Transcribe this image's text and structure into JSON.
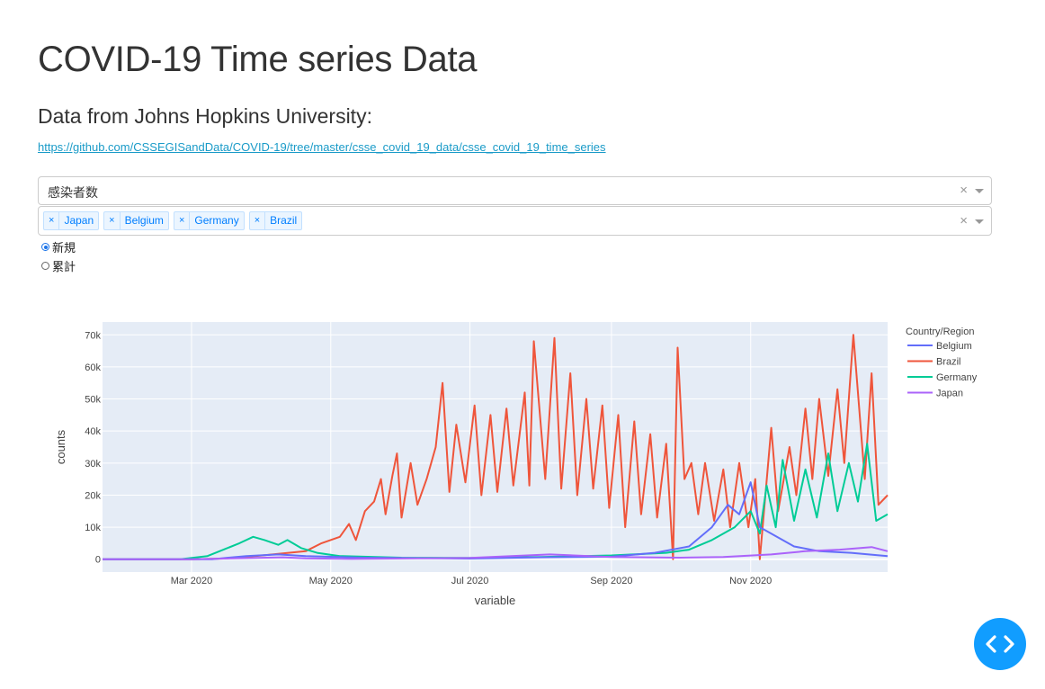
{
  "page": {
    "title": "COVID-19 Time series Data",
    "subtitle": "Data from Johns Hopkins University:",
    "source_link": "https://github.com/CSSEGISandData/COVID-19/tree/master/csse_covid_19_data/csse_covid_19_time_series"
  },
  "metric_dropdown": {
    "value": "感染者数",
    "clear": "×"
  },
  "country_dropdown": {
    "selected": [
      "Japan",
      "Belgium",
      "Germany",
      "Brazil"
    ],
    "clear": "×"
  },
  "mode_radio": {
    "options": [
      "新規",
      "累計"
    ],
    "selected": "新規"
  },
  "colors": {
    "Belgium": "#636efa",
    "Brazil": "#ef553b",
    "Germany": "#00cc96",
    "Japan": "#ab63fa",
    "plot_bg": "#e5ecf6",
    "fab": "#119dff"
  },
  "icons": {
    "fab": "code-icon"
  },
  "chart_data": {
    "type": "line",
    "xlabel": "variable",
    "ylabel": "counts",
    "x_ticks": [
      "Mar 2020",
      "May 2020",
      "Jul 2020",
      "Sep 2020",
      "Nov 2020"
    ],
    "y_ticks": [
      "0",
      "10k",
      "20k",
      "30k",
      "40k",
      "50k",
      "60k",
      "70k"
    ],
    "x_range": [
      "2020-01-22",
      "2020-12-31"
    ],
    "ylim": [
      -4000,
      74000
    ],
    "grid": true,
    "legend": {
      "title": "Country/Region",
      "position": "right"
    },
    "series": [
      {
        "name": "Brazil",
        "points": [
          [
            "2020-01-22",
            0
          ],
          [
            "2020-03-01",
            0
          ],
          [
            "2020-03-15",
            200
          ],
          [
            "2020-03-31",
            1100
          ],
          [
            "2020-04-10",
            1800
          ],
          [
            "2020-04-20",
            2500
          ],
          [
            "2020-04-27",
            5000
          ],
          [
            "2020-05-05",
            7000
          ],
          [
            "2020-05-09",
            11000
          ],
          [
            "2020-05-12",
            6000
          ],
          [
            "2020-05-16",
            15000
          ],
          [
            "2020-05-20",
            18000
          ],
          [
            "2020-05-23",
            25000
          ],
          [
            "2020-05-25",
            14000
          ],
          [
            "2020-05-28",
            26000
          ],
          [
            "2020-05-30",
            33000
          ],
          [
            "2020-06-01",
            13000
          ],
          [
            "2020-06-05",
            30000
          ],
          [
            "2020-06-08",
            17000
          ],
          [
            "2020-06-12",
            25000
          ],
          [
            "2020-06-16",
            35000
          ],
          [
            "2020-06-19",
            55000
          ],
          [
            "2020-06-22",
            21000
          ],
          [
            "2020-06-25",
            42000
          ],
          [
            "2020-06-29",
            24000
          ],
          [
            "2020-07-03",
            48000
          ],
          [
            "2020-07-06",
            20000
          ],
          [
            "2020-07-10",
            45000
          ],
          [
            "2020-07-13",
            21000
          ],
          [
            "2020-07-17",
            47000
          ],
          [
            "2020-07-20",
            23000
          ],
          [
            "2020-07-25",
            52000
          ],
          [
            "2020-07-27",
            23000
          ],
          [
            "2020-07-29",
            68000
          ],
          [
            "2020-08-03",
            25000
          ],
          [
            "2020-08-07",
            69000
          ],
          [
            "2020-08-10",
            22000
          ],
          [
            "2020-08-14",
            58000
          ],
          [
            "2020-08-17",
            20000
          ],
          [
            "2020-08-21",
            50000
          ],
          [
            "2020-08-24",
            22000
          ],
          [
            "2020-08-28",
            48000
          ],
          [
            "2020-08-31",
            16000
          ],
          [
            "2020-09-04",
            45000
          ],
          [
            "2020-09-07",
            10000
          ],
          [
            "2020-09-11",
            43000
          ],
          [
            "2020-09-14",
            14000
          ],
          [
            "2020-09-18",
            39000
          ],
          [
            "2020-09-21",
            13000
          ],
          [
            "2020-09-25",
            36000
          ],
          [
            "2020-09-28",
            0
          ],
          [
            "2020-09-30",
            66000
          ],
          [
            "2020-10-03",
            25000
          ],
          [
            "2020-10-06",
            30000
          ],
          [
            "2020-10-09",
            14000
          ],
          [
            "2020-10-12",
            30000
          ],
          [
            "2020-10-16",
            12000
          ],
          [
            "2020-10-20",
            28000
          ],
          [
            "2020-10-23",
            10000
          ],
          [
            "2020-10-27",
            30000
          ],
          [
            "2020-10-31",
            10000
          ],
          [
            "2020-11-03",
            25000
          ],
          [
            "2020-11-05",
            0
          ],
          [
            "2020-11-10",
            41000
          ],
          [
            "2020-11-13",
            15000
          ],
          [
            "2020-11-18",
            35000
          ],
          [
            "2020-11-21",
            20000
          ],
          [
            "2020-11-25",
            47000
          ],
          [
            "2020-11-28",
            25000
          ],
          [
            "2020-12-01",
            50000
          ],
          [
            "2020-12-05",
            26000
          ],
          [
            "2020-12-09",
            53000
          ],
          [
            "2020-12-12",
            30000
          ],
          [
            "2020-12-16",
            70000
          ],
          [
            "2020-12-18",
            52000
          ],
          [
            "2020-12-21",
            25000
          ],
          [
            "2020-12-24",
            58000
          ],
          [
            "2020-12-27",
            17000
          ],
          [
            "2020-12-31",
            20000
          ]
        ]
      },
      {
        "name": "Germany",
        "points": [
          [
            "2020-01-22",
            0
          ],
          [
            "2020-02-25",
            0
          ],
          [
            "2020-03-08",
            1000
          ],
          [
            "2020-03-15",
            3000
          ],
          [
            "2020-03-22",
            5000
          ],
          [
            "2020-03-28",
            7000
          ],
          [
            "2020-04-02",
            6000
          ],
          [
            "2020-04-08",
            4500
          ],
          [
            "2020-04-12",
            6000
          ],
          [
            "2020-04-18",
            3500
          ],
          [
            "2020-04-25",
            2000
          ],
          [
            "2020-05-05",
            1000
          ],
          [
            "2020-06-01",
            500
          ],
          [
            "2020-07-01",
            400
          ],
          [
            "2020-08-01",
            700
          ],
          [
            "2020-09-01",
            1200
          ],
          [
            "2020-09-25",
            2000
          ],
          [
            "2020-10-05",
            3000
          ],
          [
            "2020-10-15",
            6000
          ],
          [
            "2020-10-25",
            10000
          ],
          [
            "2020-11-01",
            15000
          ],
          [
            "2020-11-05",
            8000
          ],
          [
            "2020-11-08",
            23000
          ],
          [
            "2020-11-12",
            10000
          ],
          [
            "2020-11-15",
            31000
          ],
          [
            "2020-11-20",
            12000
          ],
          [
            "2020-11-25",
            28000
          ],
          [
            "2020-11-30",
            13000
          ],
          [
            "2020-12-05",
            33000
          ],
          [
            "2020-12-09",
            15000
          ],
          [
            "2020-12-14",
            30000
          ],
          [
            "2020-12-18",
            18000
          ],
          [
            "2020-12-22",
            36000
          ],
          [
            "2020-12-26",
            12000
          ],
          [
            "2020-12-31",
            14000
          ]
        ]
      },
      {
        "name": "Belgium",
        "points": [
          [
            "2020-01-22",
            0
          ],
          [
            "2020-03-10",
            0
          ],
          [
            "2020-03-25",
            1000
          ],
          [
            "2020-04-08",
            1500
          ],
          [
            "2020-04-20",
            1000
          ],
          [
            "2020-05-15",
            500
          ],
          [
            "2020-07-01",
            200
          ],
          [
            "2020-08-01",
            600
          ],
          [
            "2020-09-01",
            800
          ],
          [
            "2020-09-20",
            2000
          ],
          [
            "2020-10-05",
            4000
          ],
          [
            "2020-10-15",
            10000
          ],
          [
            "2020-10-22",
            17000
          ],
          [
            "2020-10-27",
            14000
          ],
          [
            "2020-11-01",
            24000
          ],
          [
            "2020-11-05",
            10000
          ],
          [
            "2020-11-10",
            8000
          ],
          [
            "2020-11-20",
            4000
          ],
          [
            "2020-12-01",
            2500
          ],
          [
            "2020-12-15",
            2000
          ],
          [
            "2020-12-31",
            1000
          ]
        ]
      },
      {
        "name": "Japan",
        "points": [
          [
            "2020-01-22",
            0
          ],
          [
            "2020-03-01",
            0
          ],
          [
            "2020-04-10",
            600
          ],
          [
            "2020-04-20",
            300
          ],
          [
            "2020-05-10",
            100
          ],
          [
            "2020-07-01",
            400
          ],
          [
            "2020-08-05",
            1500
          ],
          [
            "2020-09-01",
            700
          ],
          [
            "2020-10-01",
            500
          ],
          [
            "2020-10-20",
            700
          ],
          [
            "2020-11-10",
            1500
          ],
          [
            "2020-11-25",
            2500
          ],
          [
            "2020-12-10",
            3000
          ],
          [
            "2020-12-24",
            3800
          ],
          [
            "2020-12-31",
            2500
          ]
        ]
      }
    ]
  }
}
